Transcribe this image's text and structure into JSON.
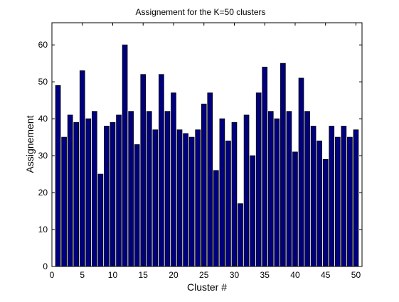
{
  "chart_data": {
    "type": "bar",
    "title": "Assignement for the K=50 clusters",
    "xlabel": "Cluster #",
    "ylabel": "Assignement",
    "xlim": [
      0,
      51
    ],
    "ylim": [
      0,
      66
    ],
    "xticks": [
      0,
      5,
      10,
      15,
      20,
      25,
      30,
      35,
      40,
      45,
      50
    ],
    "yticks": [
      0,
      10,
      20,
      30,
      40,
      50,
      60
    ],
    "grid": false,
    "legend": "none",
    "bar_color": "#00007f",
    "bar_edge_color": "#000000",
    "categories": [
      1,
      2,
      3,
      4,
      5,
      6,
      7,
      8,
      9,
      10,
      11,
      12,
      13,
      14,
      15,
      16,
      17,
      18,
      19,
      20,
      21,
      22,
      23,
      24,
      25,
      26,
      27,
      28,
      29,
      30,
      31,
      32,
      33,
      34,
      35,
      36,
      37,
      38,
      39,
      40,
      41,
      42,
      43,
      44,
      45,
      46,
      47,
      48,
      49,
      50
    ],
    "values": [
      49,
      35,
      41,
      39,
      53,
      40,
      42,
      25,
      38,
      39,
      41,
      60,
      42,
      33,
      52,
      42,
      37,
      52,
      42,
      47,
      37,
      36,
      35,
      37,
      44,
      47,
      26,
      40,
      34,
      39,
      17,
      41,
      30,
      47,
      54,
      42,
      40,
      55,
      42,
      31,
      51,
      42,
      38,
      34,
      29,
      38,
      35,
      38,
      35,
      37
    ]
  }
}
